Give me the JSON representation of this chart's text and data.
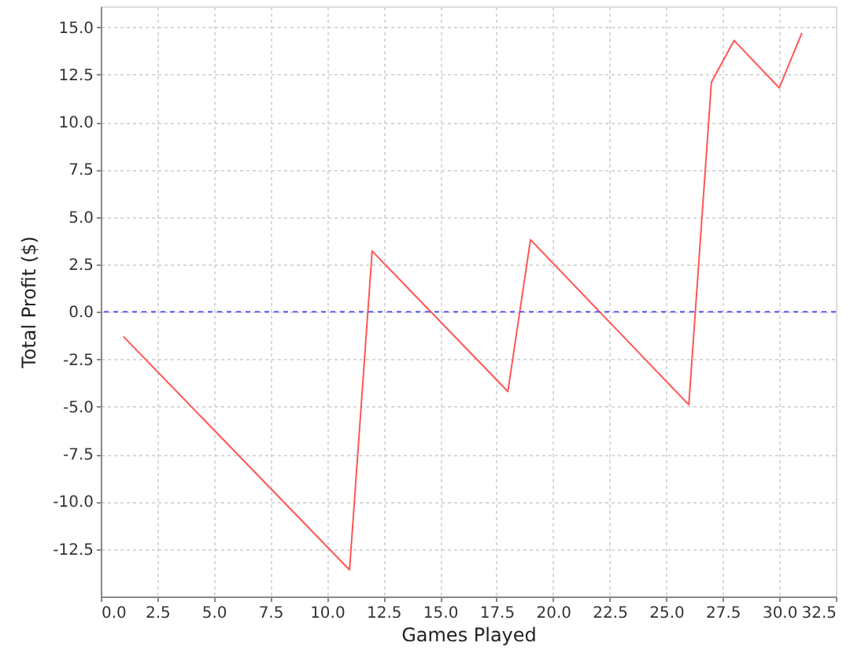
{
  "chart_data": {
    "type": "line",
    "xlabel": "Games Played",
    "ylabel": "Total Profit ($)",
    "x": [
      1,
      11,
      12,
      18,
      19,
      26,
      27,
      28,
      30,
      31
    ],
    "series": [
      {
        "color": "#ff5555",
        "values": [
          -1.3,
          -13.6,
          3.2,
          -4.2,
          3.8,
          -4.9,
          12.1,
          14.3,
          11.8,
          14.7
        ]
      }
    ],
    "xlim": [
      0,
      32.5
    ],
    "ylim": [
      -15.0,
      16.1
    ],
    "xticks": [
      {
        "value": 0,
        "label": "0.0"
      },
      2.5,
      {
        "value": 5,
        "label": "5.0"
      },
      7.5,
      {
        "value": 10,
        "label": "10.0"
      },
      12.5,
      {
        "value": 15,
        "label": "15.0"
      },
      17.5,
      {
        "value": 20,
        "label": "20.0"
      },
      22.5,
      {
        "value": 25,
        "label": "25.0"
      },
      27.5,
      {
        "value": 30,
        "label": "30.0"
      },
      32.5
    ],
    "yticks": [
      -12.5,
      {
        "value": -10,
        "label": "-10.0"
      },
      -7.5,
      {
        "value": -5,
        "label": "-5.0"
      },
      -2.5,
      {
        "value": 0,
        "label": "0.0"
      },
      2.5,
      {
        "value": 5,
        "label": "5.0"
      },
      7.5,
      {
        "value": 10,
        "label": "10.0"
      },
      12.5,
      {
        "value": 15,
        "label": "15.0"
      }
    ],
    "grid": true,
    "line_style": "solid",
    "ref_lines": [
      {
        "axis": "y",
        "value": 0,
        "color": "#5555ff",
        "line_style": "dashed"
      }
    ]
  }
}
